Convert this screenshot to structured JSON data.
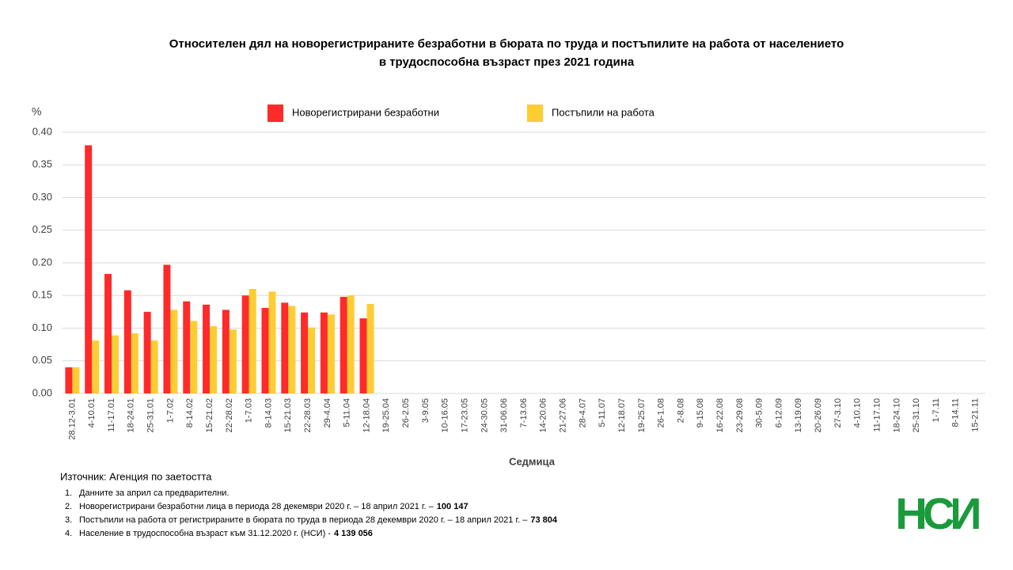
{
  "chart_data": {
    "type": "bar",
    "title": [
      "Относителен дял на новорегистрираните безработни в бюрата по труда и постъпилите на работа от населението",
      "в трудоспособна възраст през 2021 година"
    ],
    "y_unit": "%",
    "xlabel": "Седмица",
    "categories": [
      "28.12-3.01",
      "4-10.01",
      "11-17.01",
      "18-24.01",
      "25-31.01",
      "1-7.02",
      "8-14.02",
      "15-21.02",
      "22-28.02",
      "1-7.03",
      "8-14.03",
      "15-21.03",
      "22-28.03",
      "29-4.04",
      "5-11.04",
      "12-18.04",
      "19-25.04",
      "26-2.05",
      "3-9.05",
      "10-16.05",
      "17-23.05",
      "24-30.05",
      "31-06.06",
      "7-13.06",
      "14-20.06",
      "21-27.06",
      "28-4.07",
      "5-11.07",
      "12-18.07",
      "19-25.07",
      "26-1.08",
      "2-8.08",
      "9-15.08",
      "16-22.08",
      "23-29.08",
      "30-5.09",
      "6-12.09",
      "13-19.09",
      "20-26.09",
      "27-3.10",
      "4-10.10",
      "11-17.10",
      "18-24.10",
      "25-31.10",
      "1-7.11",
      "8-14.11",
      "15-21.11"
    ],
    "series": [
      {
        "name": "Новорегистрирани безработни",
        "color": "#ff2a2a",
        "values": [
          0.04,
          0.38,
          0.183,
          0.158,
          0.125,
          0.197,
          0.141,
          0.136,
          0.128,
          0.15,
          0.131,
          0.139,
          0.124,
          0.124,
          0.148,
          0.115,
          null,
          null,
          null,
          null,
          null,
          null,
          null,
          null,
          null,
          null,
          null,
          null,
          null,
          null,
          null,
          null,
          null,
          null,
          null,
          null,
          null,
          null,
          null,
          null,
          null,
          null,
          null,
          null,
          null,
          null,
          null
        ]
      },
      {
        "name": "Постъпили на работа",
        "color": "#ffcc33",
        "values": [
          0.04,
          0.081,
          0.089,
          0.092,
          0.081,
          0.128,
          0.111,
          0.103,
          0.098,
          0.16,
          0.156,
          0.134,
          0.101,
          0.121,
          0.15,
          0.137,
          null,
          null,
          null,
          null,
          null,
          null,
          null,
          null,
          null,
          null,
          null,
          null,
          null,
          null,
          null,
          null,
          null,
          null,
          null,
          null,
          null,
          null,
          null,
          null,
          null,
          null,
          null,
          null,
          null,
          null,
          null
        ]
      }
    ],
    "ylim": [
      0,
      0.4
    ],
    "yticks": [
      {
        "value": 0,
        "label": "0.00"
      },
      {
        "value": 0.05,
        "label": "0.05"
      },
      {
        "value": 0.1,
        "label": "0.10"
      },
      {
        "value": 0.15,
        "label": "0.15"
      },
      {
        "value": 0.2,
        "label": "0.20"
      },
      {
        "value": 0.25,
        "label": "0.25"
      },
      {
        "value": 0.3,
        "label": "0.30"
      },
      {
        "value": 0.35,
        "label": "0.35"
      },
      {
        "value": 0.4,
        "label": "0.40"
      }
    ],
    "grid": true,
    "source": "Източник: Агенция по заетостта",
    "notes": [
      {
        "number": "1.",
        "text": "Данните за април са предварителни.",
        "bold": null
      },
      {
        "number": "2.",
        "text": "Новорегистрирани безработни лица в периода 28 декември 2020 г. – 18 април 2021 г. –",
        "bold": "100 147"
      },
      {
        "number": "3.",
        "text": "Постъпили на работа от регистрираните в бюрата по труда в периода 28 декември 2020 г. – 18 април 2021 г. –",
        "bold": "73 804"
      },
      {
        "number": "4.",
        "text": "Население в трудоспособна възраст към 31.12.2020 г. (НСИ) -",
        "bold": "4 139 056"
      }
    ],
    "logo": "НСИ"
  }
}
